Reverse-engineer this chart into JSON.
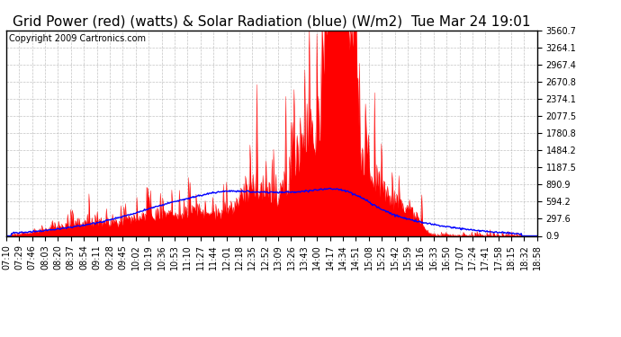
{
  "title": "Grid Power (red) (watts) & Solar Radiation (blue) (W/m2)  Tue Mar 24 19:01",
  "copyright": "Copyright 2009 Cartronics.com",
  "background_color": "#ffffff",
  "plot_bg_color": "#ffffff",
  "grid_color": "#aaaaaa",
  "yticks": [
    0.9,
    297.6,
    594.2,
    890.9,
    1187.5,
    1484.2,
    1780.8,
    2077.5,
    2374.1,
    2670.8,
    2967.4,
    3264.1,
    3560.7
  ],
  "ylim": [
    0.9,
    3560.7
  ],
  "x_labels": [
    "07:10",
    "07:29",
    "07:46",
    "08:03",
    "08:20",
    "08:37",
    "08:54",
    "09:11",
    "09:28",
    "09:45",
    "10:02",
    "10:19",
    "10:36",
    "10:53",
    "11:10",
    "11:27",
    "11:44",
    "12:01",
    "12:18",
    "12:35",
    "12:52",
    "13:09",
    "13:26",
    "13:43",
    "14:00",
    "14:17",
    "14:34",
    "14:51",
    "15:08",
    "15:25",
    "15:42",
    "15:59",
    "16:16",
    "16:33",
    "16:50",
    "17:07",
    "17:24",
    "17:41",
    "17:58",
    "18:15",
    "18:32",
    "18:58"
  ],
  "red_line_color": "#ff0000",
  "red_fill_color": "#ff0000",
  "blue_line_color": "#0000ff",
  "title_fontsize": 11,
  "tick_fontsize": 7,
  "copyright_fontsize": 7
}
